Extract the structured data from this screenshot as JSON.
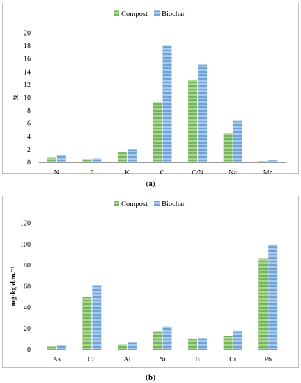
{
  "colors": {
    "compost": "#77b55a",
    "biochar": "#6ea3d8"
  },
  "chart_data": [
    {
      "id": "a",
      "type": "bar",
      "title": "",
      "caption_label": "a",
      "xlabel": "",
      "ylabel": "%",
      "ylim": [
        0,
        20
      ],
      "yticks": [
        0,
        2,
        4,
        6,
        8,
        10,
        12,
        14,
        16,
        18,
        20
      ],
      "categories": [
        "N",
        "P",
        "K",
        "C",
        "C/N",
        "Na",
        "Mn"
      ],
      "series": [
        {
          "name": "Compost",
          "values": [
            0.7,
            0.4,
            1.6,
            9.2,
            12.7,
            4.5,
            0.2
          ]
        },
        {
          "name": "Biochar",
          "values": [
            1.1,
            0.6,
            2.0,
            18.0,
            15.1,
            6.4,
            0.3
          ]
        }
      ],
      "legend": "top-center",
      "grid": false
    },
    {
      "id": "b",
      "type": "bar",
      "title": "",
      "caption_label": "b",
      "xlabel": "",
      "ylabel": "mg·kg d.m.⁻¹",
      "ylim": [
        0,
        120
      ],
      "yticks": [
        0,
        20,
        40,
        60,
        80,
        100,
        120
      ],
      "categories": [
        "As",
        "Cu",
        "Al",
        "Ni",
        "B",
        "Cr",
        "Pb"
      ],
      "series": [
        {
          "name": "Compost",
          "values": [
            3,
            50,
            5,
            17,
            10,
            13,
            86
          ]
        },
        {
          "name": "Biochar",
          "values": [
            4,
            61,
            7,
            22,
            11,
            18,
            99
          ]
        }
      ],
      "legend": "top-center",
      "grid": false
    }
  ]
}
